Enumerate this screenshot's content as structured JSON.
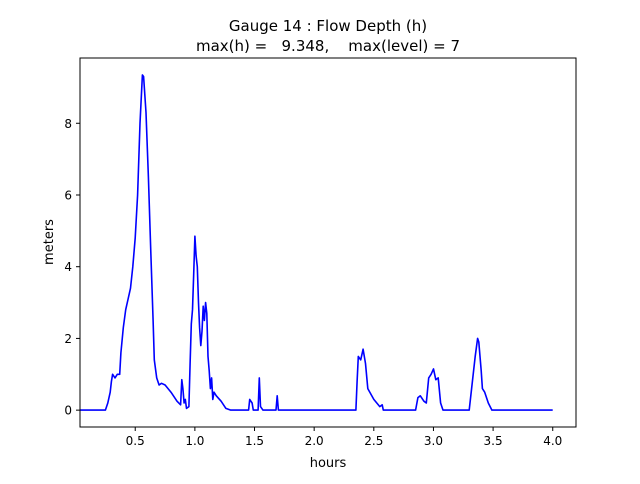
{
  "chart_data": {
    "type": "line",
    "title_line1": "Gauge 14 : Flow Depth (h)",
    "title_line2": "max(h) =   9.348,    max(level) = 7",
    "xlabel": "hours",
    "ylabel": "meters",
    "xlim": [
      0.037,
      4.195
    ],
    "ylim": [
      -0.47,
      9.82
    ],
    "xticks": [
      0.5,
      1.0,
      1.5,
      2.0,
      2.5,
      3.0,
      3.5,
      4.0
    ],
    "xtick_labels": [
      "0.5",
      "1.0",
      "1.5",
      "2.0",
      "2.5",
      "3.0",
      "3.5",
      "4.0"
    ],
    "yticks": [
      0,
      2,
      4,
      6,
      8
    ],
    "ytick_labels": [
      "0",
      "2",
      "4",
      "6",
      "8"
    ],
    "grid": false,
    "series": [
      {
        "name": "h",
        "color": "#0000ff",
        "x": [
          0.04,
          0.25,
          0.27,
          0.29,
          0.3,
          0.31,
          0.33,
          0.35,
          0.37,
          0.38,
          0.4,
          0.42,
          0.44,
          0.46,
          0.48,
          0.5,
          0.52,
          0.54,
          0.56,
          0.57,
          0.59,
          0.61,
          0.63,
          0.65,
          0.66,
          0.68,
          0.7,
          0.72,
          0.75,
          0.8,
          0.85,
          0.88,
          0.89,
          0.9,
          0.91,
          0.92,
          0.93,
          0.95,
          0.96,
          0.97,
          0.98,
          0.99,
          1.0,
          1.01,
          1.02,
          1.03,
          1.04,
          1.05,
          1.06,
          1.07,
          1.08,
          1.09,
          1.1,
          1.11,
          1.12,
          1.13,
          1.14,
          1.15,
          1.16,
          1.18,
          1.22,
          1.26,
          1.3,
          1.45,
          1.46,
          1.48,
          1.49,
          1.53,
          1.54,
          1.55,
          1.57,
          1.68,
          1.69,
          1.7,
          2.35,
          2.36,
          2.37,
          2.39,
          2.41,
          2.43,
          2.45,
          2.5,
          2.55,
          2.57,
          2.58,
          2.85,
          2.87,
          2.89,
          2.92,
          2.94,
          2.96,
          2.98,
          3.0,
          3.02,
          3.04,
          3.06,
          3.08,
          3.3,
          3.32,
          3.35,
          3.37,
          3.38,
          3.4,
          3.41,
          3.43,
          3.46,
          3.49,
          4.0
        ],
        "y": [
          0,
          0,
          0.2,
          0.5,
          0.8,
          1.0,
          0.9,
          1.0,
          1.0,
          1.6,
          2.3,
          2.8,
          3.1,
          3.4,
          4.0,
          4.8,
          6.0,
          8.0,
          9.348,
          9.3,
          8.3,
          6.5,
          4.5,
          2.5,
          1.4,
          0.9,
          0.7,
          0.75,
          0.7,
          0.5,
          0.25,
          0.15,
          0.85,
          0.6,
          0.2,
          0.3,
          0.05,
          0.1,
          1.3,
          2.4,
          2.8,
          3.8,
          4.85,
          4.3,
          4.0,
          3.0,
          2.3,
          1.8,
          2.2,
          2.9,
          2.5,
          3.0,
          2.7,
          1.5,
          1.1,
          0.6,
          0.9,
          0.3,
          0.5,
          0.4,
          0.25,
          0.05,
          0,
          0,
          0.3,
          0.2,
          0,
          0,
          0.9,
          0.1,
          0,
          0,
          0.4,
          0,
          0,
          0.8,
          1.5,
          1.4,
          1.7,
          1.3,
          0.6,
          0.3,
          0.1,
          0.15,
          0,
          0,
          0.35,
          0.4,
          0.25,
          0.2,
          0.9,
          1.0,
          1.15,
          0.85,
          0.9,
          0.2,
          0,
          0,
          0.6,
          1.5,
          2.0,
          1.9,
          1.1,
          0.6,
          0.5,
          0.2,
          0,
          0
        ]
      }
    ]
  }
}
